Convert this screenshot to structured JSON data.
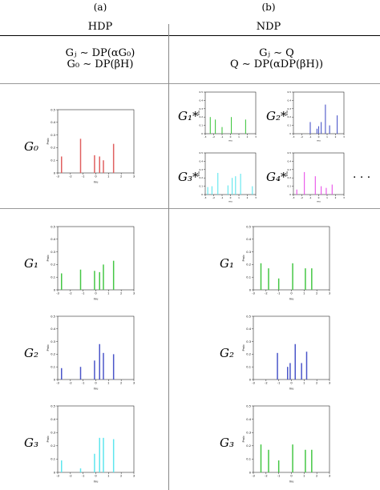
{
  "figure": {
    "col_a_label": "(a)",
    "col_b_label": "(b)",
    "col_a_title": "HDP",
    "col_b_title": "NDP",
    "hdp_formula_1": "Gⱼ ∼ DP(αG₀)",
    "hdp_formula_2": "G₀ ∼ DP(βH)",
    "ndp_formula_1": "Gⱼ ∼ Q",
    "ndp_formula_2": "Q ∼ DP(αDP(βH))",
    "ellipsis": "· · ·"
  },
  "labels": {
    "g0": "G₀",
    "g1s": "G₁*",
    "g2s": "G₂*",
    "g3s": "G₃*",
    "g4s": "G₄*",
    "g1": "G₁",
    "g2": "G₂",
    "g3": "G₃"
  },
  "colors": {
    "red": "#e06060",
    "green": "#44c744",
    "blue": "#4a55c9",
    "cyan": "#5ee6ee",
    "magenta": "#e84ee8"
  },
  "axis": {
    "x_ticks": [
      "-3",
      "-2",
      "-1",
      "0",
      "1",
      "2",
      "3"
    ],
    "y_ticks": [
      "0",
      "0.1",
      "0.2",
      "0.3",
      "0.4",
      "0.5"
    ],
    "xlabel": "mu",
    "ylabel": "Prob"
  },
  "chart_data": [
    {
      "id": "hdp-g0",
      "type": "bar",
      "color": "red",
      "xlim": [
        -3,
        3
      ],
      "ylim": [
        0,
        0.5
      ],
      "x": [
        -2.7,
        -1.2,
        -0.1,
        0.3,
        0.6,
        1.4
      ],
      "values": [
        0.13,
        0.27,
        0.14,
        0.13,
        0.1,
        0.23
      ]
    },
    {
      "id": "ndp-g1s",
      "type": "bar",
      "color": "green",
      "xlim": [
        -3,
        3
      ],
      "ylim": [
        0,
        0.5
      ],
      "x": [
        -2.4,
        -1.8,
        -1.0,
        0.1,
        1.8
      ],
      "values": [
        0.2,
        0.17,
        0.08,
        0.2,
        0.17
      ]
    },
    {
      "id": "ndp-g2s",
      "type": "bar",
      "color": "blue",
      "xlim": [
        -3,
        3
      ],
      "ylim": [
        0,
        0.5
      ],
      "x": [
        -1.0,
        -0.2,
        0.0,
        0.3,
        0.8,
        1.3,
        2.2
      ],
      "values": [
        0.14,
        0.06,
        0.09,
        0.14,
        0.35,
        0.1,
        0.22
      ]
    },
    {
      "id": "ndp-g3s",
      "type": "bar",
      "color": "cyan",
      "xlim": [
        -3,
        3
      ],
      "ylim": [
        0,
        0.5
      ],
      "x": [
        -2.7,
        -2.2,
        -1.5,
        -0.3,
        0.2,
        0.6,
        1.2,
        2.6
      ],
      "values": [
        0.09,
        0.1,
        0.26,
        0.11,
        0.2,
        0.22,
        0.25,
        0.1
      ]
    },
    {
      "id": "ndp-g4s",
      "type": "bar",
      "color": "magenta",
      "xlim": [
        -3,
        3
      ],
      "ylim": [
        0,
        0.5
      ],
      "x": [
        -2.6,
        -1.7,
        -0.4,
        0.3,
        0.9,
        1.6
      ],
      "values": [
        0.06,
        0.27,
        0.22,
        0.1,
        0.08,
        0.12
      ]
    },
    {
      "id": "hdp-g1",
      "type": "bar",
      "color": "green",
      "xlim": [
        -3,
        3
      ],
      "ylim": [
        0,
        0.5
      ],
      "x": [
        -2.7,
        -1.2,
        -0.1,
        0.3,
        0.6,
        1.4
      ],
      "values": [
        0.13,
        0.16,
        0.15,
        0.14,
        0.2,
        0.23
      ]
    },
    {
      "id": "hdp-g2",
      "type": "bar",
      "color": "blue",
      "xlim": [
        -3,
        3
      ],
      "ylim": [
        0,
        0.5
      ],
      "x": [
        -2.7,
        -1.2,
        -0.1,
        0.3,
        0.6,
        1.4
      ],
      "values": [
        0.09,
        0.1,
        0.15,
        0.28,
        0.21,
        0.2
      ]
    },
    {
      "id": "hdp-g3",
      "type": "bar",
      "color": "cyan",
      "xlim": [
        -3,
        3
      ],
      "ylim": [
        0,
        0.5
      ],
      "x": [
        -2.7,
        -1.2,
        -0.1,
        0.3,
        0.6,
        1.4
      ],
      "values": [
        0.09,
        0.03,
        0.14,
        0.26,
        0.26,
        0.25
      ]
    },
    {
      "id": "ndp-g1",
      "type": "bar",
      "color": "green",
      "xlim": [
        -3,
        3
      ],
      "ylim": [
        0,
        0.5
      ],
      "x": [
        -2.4,
        -1.8,
        -1.0,
        0.1,
        1.1,
        1.6
      ],
      "values": [
        0.21,
        0.17,
        0.09,
        0.21,
        0.17,
        0.17
      ]
    },
    {
      "id": "ndp-g2",
      "type": "bar",
      "color": "blue",
      "xlim": [
        -3,
        3
      ],
      "ylim": [
        0,
        0.5
      ],
      "x": [
        -1.1,
        -0.3,
        -0.1,
        0.3,
        0.8,
        1.2
      ],
      "values": [
        0.21,
        0.1,
        0.13,
        0.28,
        0.13,
        0.22
      ]
    },
    {
      "id": "ndp-g3",
      "type": "bar",
      "color": "green",
      "xlim": [
        -3,
        3
      ],
      "ylim": [
        0,
        0.5
      ],
      "x": [
        -2.4,
        -1.8,
        -1.0,
        0.1,
        1.1,
        1.6
      ],
      "values": [
        0.21,
        0.17,
        0.09,
        0.21,
        0.17,
        0.17
      ]
    }
  ]
}
